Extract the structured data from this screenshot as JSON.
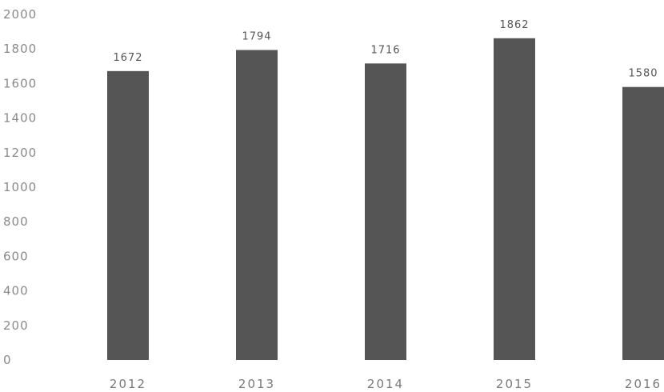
{
  "chart_data": {
    "type": "bar",
    "categories": [
      "2012",
      "2013",
      "2014",
      "2015",
      "2016"
    ],
    "values": [
      1672,
      1794,
      1716,
      1862,
      1580
    ],
    "data_labels": [
      "1672",
      "1794",
      "1716",
      "1862",
      "1580"
    ],
    "y_ticks": [
      "0",
      "200",
      "400",
      "600",
      "800",
      "1000",
      "1200",
      "1400",
      "1600",
      "1800",
      "2000"
    ],
    "title": "",
    "xlabel": "",
    "ylabel": "",
    "ylim": [
      0,
      2000
    ],
    "grid": false,
    "legend": "none",
    "bar_color": "#555555"
  }
}
